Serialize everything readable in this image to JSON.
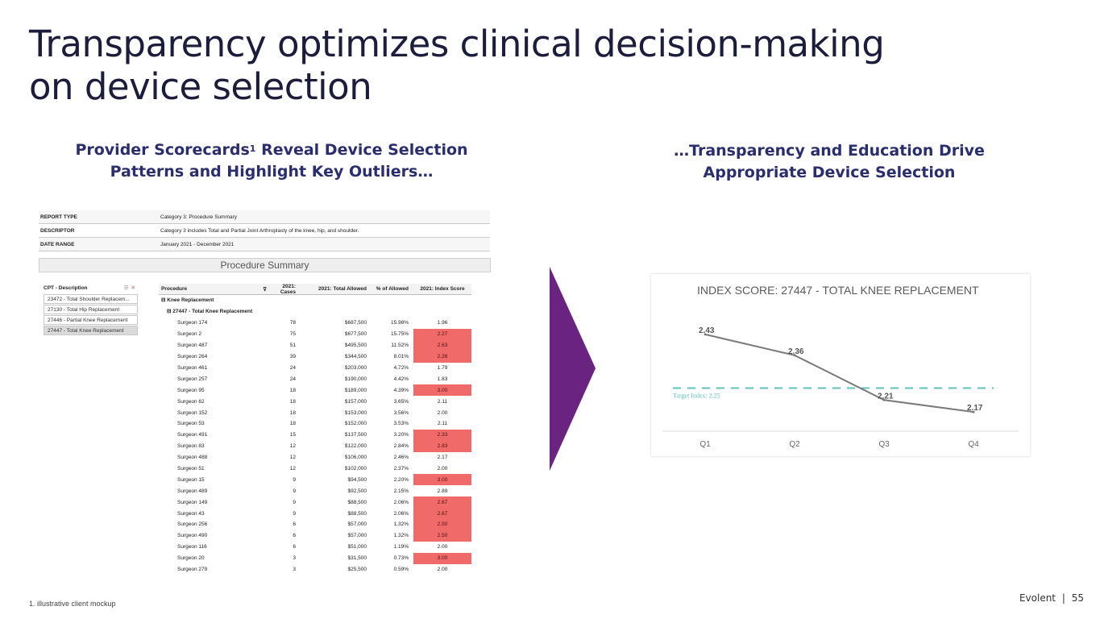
{
  "title": {
    "line1": "Transparency optimizes clinical decision-making",
    "line2": "on device selection"
  },
  "left_heading": {
    "line1_pre": "Provider Scorecards",
    "sup": "1",
    "line1_post": " Reveal Device Selection",
    "line2": "Patterns and Highlight Key Outliers…"
  },
  "right_heading": {
    "line1": "…Transparency and Education Drive",
    "line2": "Appropriate Device Selection"
  },
  "report": {
    "rows": [
      {
        "key": "REPORT TYPE",
        "value": "Category 3: Procedure Summary"
      },
      {
        "key": "DESCRIPTOR",
        "value": "Category 3 includes Total and Partial Joint Arthroplasty of the knee, hip, and shoulder."
      },
      {
        "key": "DATE RANGE",
        "value": "January 2021 - December 2021"
      }
    ],
    "banner": "Procedure Summary"
  },
  "filter": {
    "title": "CPT - Description",
    "items": [
      "23472 - Total Shoulder Replacem...",
      "27130 - Total Hip Replacement",
      "27446 - Partial Knee Replacement",
      "27447 - Total Knee Replacement"
    ]
  },
  "table": {
    "headers": {
      "procedure": "Procedure",
      "cases": "2021: Cases",
      "allowed": "2021: Total Allowed",
      "pct": "% of Allowed",
      "index": "2021: Index Score"
    },
    "group1": "⊟ Knee Replacement",
    "group2": "⊟ 27447 - Total Knee Replacement",
    "rows": [
      {
        "name": "Surgeon 174",
        "cases": "78",
        "allowed": "$687,500",
        "pct": "15.98%",
        "index": "1.96",
        "highlight": false
      },
      {
        "name": "Surgeon 2",
        "cases": "75",
        "allowed": "$677,500",
        "pct": "15.75%",
        "index": "2.27",
        "highlight": true
      },
      {
        "name": "Surgeon 487",
        "cases": "51",
        "allowed": "$495,500",
        "pct": "11.52%",
        "index": "2.63",
        "highlight": true
      },
      {
        "name": "Surgeon 264",
        "cases": "39",
        "allowed": "$344,500",
        "pct": "8.01%",
        "index": "2.26",
        "highlight": true
      },
      {
        "name": "Surgeon 461",
        "cases": "24",
        "allowed": "$203,000",
        "pct": "4.72%",
        "index": "1.79",
        "highlight": false
      },
      {
        "name": "Surgeon 257",
        "cases": "24",
        "allowed": "$190,000",
        "pct": "4.42%",
        "index": "1.83",
        "highlight": false
      },
      {
        "name": "Surgeon 95",
        "cases": "18",
        "allowed": "$189,000",
        "pct": "4.39%",
        "index": "3.00",
        "highlight": true
      },
      {
        "name": "Surgeon 62",
        "cases": "18",
        "allowed": "$157,000",
        "pct": "3.65%",
        "index": "2.11",
        "highlight": false
      },
      {
        "name": "Surgeon 152",
        "cases": "18",
        "allowed": "$153,000",
        "pct": "3.56%",
        "index": "2.00",
        "highlight": false
      },
      {
        "name": "Surgeon 53",
        "cases": "18",
        "allowed": "$152,000",
        "pct": "3.53%",
        "index": "2.11",
        "highlight": false
      },
      {
        "name": "Surgeon 491",
        "cases": "15",
        "allowed": "$137,500",
        "pct": "3.20%",
        "index": "2.33",
        "highlight": true
      },
      {
        "name": "Surgeon 83",
        "cases": "12",
        "allowed": "$122,000",
        "pct": "2.84%",
        "index": "2.83",
        "highlight": true
      },
      {
        "name": "Surgeon 488",
        "cases": "12",
        "allowed": "$106,000",
        "pct": "2.46%",
        "index": "2.17",
        "highlight": false
      },
      {
        "name": "Surgeon 51",
        "cases": "12",
        "allowed": "$102,000",
        "pct": "2.37%",
        "index": "2.00",
        "highlight": false
      },
      {
        "name": "Surgeon 15",
        "cases": "9",
        "allowed": "$94,500",
        "pct": "2.20%",
        "index": "3.00",
        "highlight": true
      },
      {
        "name": "Surgeon 489",
        "cases": "9",
        "allowed": "$92,500",
        "pct": "2.15%",
        "index": "2.89",
        "highlight": false
      },
      {
        "name": "Surgeon 149",
        "cases": "9",
        "allowed": "$88,500",
        "pct": "2.06%",
        "index": "2.67",
        "highlight": true
      },
      {
        "name": "Surgeon 43",
        "cases": "9",
        "allowed": "$88,500",
        "pct": "2.06%",
        "index": "2.67",
        "highlight": true
      },
      {
        "name": "Surgeon 256",
        "cases": "6",
        "allowed": "$57,000",
        "pct": "1.32%",
        "index": "2.50",
        "highlight": true
      },
      {
        "name": "Surgeon 490",
        "cases": "6",
        "allowed": "$57,000",
        "pct": "1.32%",
        "index": "2.50",
        "highlight": true
      },
      {
        "name": "Surgeon 116",
        "cases": "6",
        "allowed": "$51,000",
        "pct": "1.19%",
        "index": "2.00",
        "highlight": false
      },
      {
        "name": "Surgeon 20",
        "cases": "3",
        "allowed": "$31,500",
        "pct": "0.73%",
        "index": "3.00",
        "highlight": true
      },
      {
        "name": "Surgeon 279",
        "cases": "3",
        "allowed": "$25,500",
        "pct": "0.59%",
        "index": "2.00",
        "highlight": false
      }
    ]
  },
  "chart_data": {
    "type": "line",
    "title": "INDEX SCORE: 27447 - TOTAL KNEE REPLACEMENT",
    "categories": [
      "Q1",
      "Q2",
      "Q3",
      "Q4"
    ],
    "values": [
      2.43,
      2.36,
      2.21,
      2.17
    ],
    "value_labels": [
      "2.43",
      "2.36",
      "2.21",
      "2.17"
    ],
    "target": {
      "value": 2.25,
      "label": "Target Index: 2.25"
    },
    "ylim": [
      2.0,
      2.5
    ],
    "xlabel": "",
    "ylabel": ""
  },
  "colors": {
    "title": "#1c1c3c",
    "heading": "#2a2d6e",
    "arrow": "#6a2381",
    "highlight": "#f06a6a",
    "target_line": "#5fc4b8",
    "series_line": "#7a7a7a"
  },
  "footnote": "1.    illustrative client mockup",
  "footer": {
    "brand": "Evolent",
    "separator": "|",
    "page": "55"
  }
}
